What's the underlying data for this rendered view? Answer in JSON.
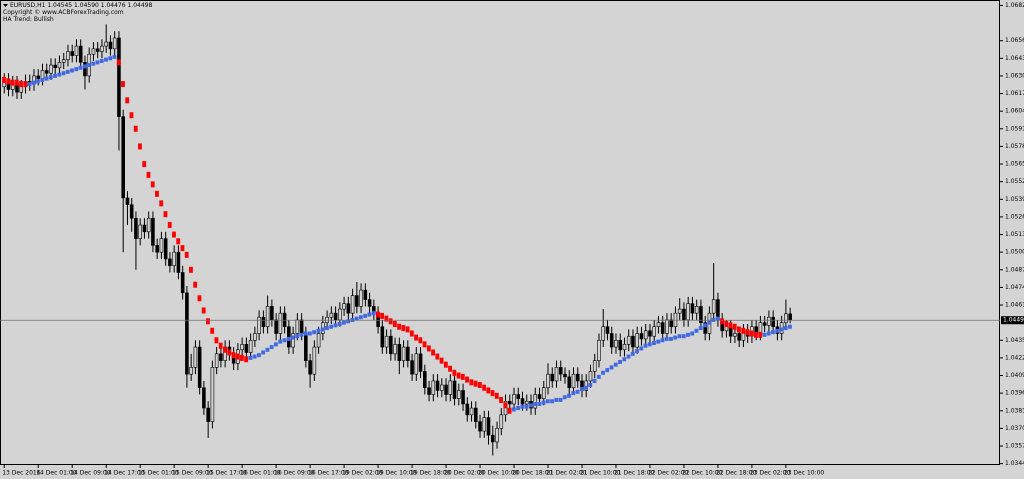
{
  "chart_data": {
    "type": "candlestick",
    "title": "EURUSD,H1  1.04545 1.04590 1.04476 1.04498",
    "subtitle": "Copyright © www.ACBForexTrading.com",
    "annotation": "HA Trend: Bullish",
    "background": "#d4d4d4",
    "candle_color": "#000000",
    "up_candle_fill": "#d4d4d4",
    "down_candle_fill": "#000000",
    "ha_up_color": "#4169e1",
    "ha_down_color": "#ff0000",
    "price_line_color": "#6e6e6e",
    "xlim": [
      -1,
      234.4
    ],
    "xticks": [
      {
        "value": 0,
        "label": "13 Dec 2016"
      },
      {
        "value": 8,
        "label": "14 Dec 01:00"
      },
      {
        "value": 16,
        "label": "14 Dec 09:00"
      },
      {
        "value": 24,
        "label": "14 Dec 17:00"
      },
      {
        "value": 32,
        "label": "15 Dec 01:00"
      },
      {
        "value": 40,
        "label": "15 Dec 09:00"
      },
      {
        "value": 48,
        "label": "15 Dec 17:00"
      },
      {
        "value": 56,
        "label": "16 Dec 01:00"
      },
      {
        "value": 64,
        "label": "16 Dec 09:00"
      },
      {
        "value": 72,
        "label": "16 Dec 17:00"
      },
      {
        "value": 80,
        "label": "19 Dec 02:00"
      },
      {
        "value": 88,
        "label": "19 Dec 10:00"
      },
      {
        "value": 96,
        "label": "19 Dec 18:00"
      },
      {
        "value": 104,
        "label": "20 Dec 02:00"
      },
      {
        "value": 112,
        "label": "20 Dec 10:00"
      },
      {
        "value": 120,
        "label": "20 Dec 18:00"
      },
      {
        "value": 128,
        "label": "21 Dec 02:00"
      },
      {
        "value": 136,
        "label": "21 Dec 10:00"
      },
      {
        "value": 144,
        "label": "21 Dec 18:00"
      },
      {
        "value": 152,
        "label": "22 Dec 02:00"
      },
      {
        "value": 160,
        "label": "22 Dec 10:00"
      },
      {
        "value": 168,
        "label": "22 Dec 18:00"
      },
      {
        "value": 176,
        "label": "23 Dec 02:00"
      },
      {
        "value": 184,
        "label": "23 Dec 10:00"
      }
    ],
    "ylim": [
      1.0343,
      1.0686
    ],
    "yticks": [
      {
        "value": 1.0682,
        "label": "1.06820"
      },
      {
        "value": 1.0656,
        "label": "1.06560"
      },
      {
        "value": 1.0643,
        "label": "1.06430"
      },
      {
        "value": 1.063,
        "label": "1.06300"
      },
      {
        "value": 1.0617,
        "label": "1.06170"
      },
      {
        "value": 1.0604,
        "label": "1.06040"
      },
      {
        "value": 1.0591,
        "label": "1.05910"
      },
      {
        "value": 1.0578,
        "label": "1.05780"
      },
      {
        "value": 1.0565,
        "label": "1.05650"
      },
      {
        "value": 1.0552,
        "label": "1.05520"
      },
      {
        "value": 1.0539,
        "label": "1.05390"
      },
      {
        "value": 1.0526,
        "label": "1.05260"
      },
      {
        "value": 1.0513,
        "label": "1.05130"
      },
      {
        "value": 1.05,
        "label": "1.05000"
      },
      {
        "value": 1.0487,
        "label": "1.04870"
      },
      {
        "value": 1.0474,
        "label": "1.04740"
      },
      {
        "value": 1.0461,
        "label": "1.04610"
      },
      {
        "value": 1.0435,
        "label": "1.04350"
      },
      {
        "value": 1.0422,
        "label": "1.04220"
      },
      {
        "value": 1.0409,
        "label": "1.04090"
      },
      {
        "value": 1.0396,
        "label": "1.03960"
      },
      {
        "value": 1.0383,
        "label": "1.03830"
      },
      {
        "value": 1.037,
        "label": "1.03700"
      },
      {
        "value": 1.0357,
        "label": "1.03570"
      },
      {
        "value": 1.0344,
        "label": "1.03440"
      }
    ],
    "current_price": {
      "value": 1.04498,
      "label": "1.04498"
    },
    "open": [
      1.0622,
      1.0627,
      1.062,
      1.0625,
      1.0618,
      1.0622,
      1.0626,
      1.0624,
      1.063,
      1.0628,
      1.0634,
      1.0632,
      1.0638,
      1.0636,
      1.064,
      1.0642,
      1.0648,
      1.0645,
      1.0652,
      1.064,
      1.063,
      1.0646,
      1.065,
      1.0648,
      1.0652,
      1.0655,
      1.065,
      1.0658,
      1.06,
      1.054,
      1.0535,
      1.0525,
      1.051,
      1.052,
      1.0515,
      1.0525,
      1.0505,
      1.05,
      1.051,
      1.0495,
      1.049,
      1.05,
      1.0485,
      1.047,
      1.041,
      1.0415,
      1.043,
      1.04,
      1.0385,
      1.0375,
      1.0415,
      1.0425,
      1.042,
      1.043,
      1.0425,
      1.0418,
      1.0428,
      1.0432,
      1.0426,
      1.0435,
      1.044,
      1.0452,
      1.0445,
      1.046,
      1.045,
      1.044,
      1.0455,
      1.0445,
      1.043,
      1.044,
      1.045,
      1.044,
      1.042,
      1.041,
      1.043,
      1.044,
      1.0448,
      1.0452,
      1.0455,
      1.045,
      1.0458,
      1.0462,
      1.0455,
      1.0468,
      1.046,
      1.0472,
      1.0465,
      1.046,
      1.0455,
      1.0445,
      1.043,
      1.0438,
      1.0425,
      1.0432,
      1.042,
      1.043,
      1.042,
      1.041,
      1.0425,
      1.0412,
      1.04,
      1.0395,
      1.0405,
      1.0398,
      1.0402,
      1.0395,
      1.0405,
      1.0392,
      1.0398,
      1.0388,
      1.038,
      1.0385,
      1.0375,
      1.0368,
      1.0378,
      1.0365,
      1.036,
      1.037,
      1.038,
      1.039,
      1.0388,
      1.0395,
      1.0392,
      1.0388,
      1.039,
      1.0385,
      1.0395,
      1.0392,
      1.04,
      1.041,
      1.0405,
      1.0415,
      1.041,
      1.0408,
      1.04,
      1.041,
      1.0405,
      1.0398,
      1.0405,
      1.0412,
      1.042,
      1.0435,
      1.0445,
      1.044,
      1.043,
      1.0435,
      1.0428,
      1.0432,
      1.0438,
      1.043,
      1.044,
      1.0436,
      1.0442,
      1.0438,
      1.0445,
      1.0448,
      1.044,
      1.045,
      1.0445,
      1.0455,
      1.0458,
      1.045,
      1.0462,
      1.0455,
      1.046,
      1.0448,
      1.044,
      1.0455,
      1.0465,
      1.045,
      1.0442,
      1.0445,
      1.0438,
      1.044,
      1.0435,
      1.0442,
      1.0438,
      1.0445,
      1.044,
      1.0448,
      1.0446,
      1.0452,
      1.0445,
      1.044,
      1.0448,
      1.04545
    ],
    "high": [
      1.0632,
      1.0632,
      1.063,
      1.063,
      1.0627,
      1.0631,
      1.0631,
      1.0635,
      1.0635,
      1.0639,
      1.0639,
      1.0643,
      1.0643,
      1.0645,
      1.0647,
      1.0653,
      1.0653,
      1.0657,
      1.0657,
      1.0645,
      1.0651,
      1.0655,
      1.0655,
      1.0657,
      1.0668,
      1.066,
      1.0663,
      1.0663,
      1.0605,
      1.0545,
      1.054,
      1.053,
      1.0525,
      1.0525,
      1.053,
      1.053,
      1.051,
      1.0515,
      1.0515,
      1.05,
      1.0505,
      1.0505,
      1.049,
      1.0475,
      1.0425,
      1.0435,
      1.0435,
      1.0405,
      1.039,
      1.042,
      1.043,
      1.043,
      1.0435,
      1.0435,
      1.043,
      1.0433,
      1.0437,
      1.0437,
      1.044,
      1.0445,
      1.0457,
      1.0457,
      1.0468,
      1.0465,
      1.0455,
      1.046,
      1.046,
      1.045,
      1.0445,
      1.0455,
      1.0455,
      1.0445,
      1.0425,
      1.0435,
      1.0445,
      1.0453,
      1.0457,
      1.046,
      1.046,
      1.0463,
      1.0467,
      1.0467,
      1.0473,
      1.0478,
      1.0477,
      1.0477,
      1.047,
      1.0465,
      1.046,
      1.045,
      1.0443,
      1.0443,
      1.0437,
      1.0437,
      1.0435,
      1.0435,
      1.0425,
      1.043,
      1.043,
      1.0417,
      1.0405,
      1.041,
      1.041,
      1.0407,
      1.0407,
      1.041,
      1.041,
      1.0403,
      1.0403,
      1.0393,
      1.039,
      1.039,
      1.038,
      1.0383,
      1.0383,
      1.0372,
      1.0375,
      1.0385,
      1.0395,
      1.0395,
      1.04,
      1.04,
      1.0397,
      1.0395,
      1.0395,
      1.04,
      1.04,
      1.0405,
      1.0418,
      1.0415,
      1.042,
      1.042,
      1.0415,
      1.0413,
      1.0415,
      1.0415,
      1.041,
      1.041,
      1.0417,
      1.0425,
      1.044,
      1.0458,
      1.045,
      1.0445,
      1.044,
      1.044,
      1.0437,
      1.0443,
      1.0443,
      1.0445,
      1.0445,
      1.0447,
      1.0447,
      1.045,
      1.0453,
      1.0453,
      1.0455,
      1.0455,
      1.046,
      1.0466,
      1.0463,
      1.0467,
      1.0467,
      1.0465,
      1.0465,
      1.0453,
      1.046,
      1.0492,
      1.047,
      1.0455,
      1.045,
      1.045,
      1.0445,
      1.0445,
      1.0447,
      1.0447,
      1.045,
      1.045,
      1.0453,
      1.0453,
      1.0457,
      1.0457,
      1.045,
      1.0453,
      1.0465,
      1.0459
    ],
    "low": [
      1.0617,
      1.0615,
      1.0615,
      1.0613,
      1.0613,
      1.0617,
      1.0619,
      1.0619,
      1.0623,
      1.0623,
      1.0627,
      1.0627,
      1.0631,
      1.0631,
      1.0635,
      1.0637,
      1.064,
      1.064,
      1.0635,
      1.062,
      1.0625,
      1.0641,
      1.0643,
      1.0643,
      1.0647,
      1.0645,
      1.0645,
      1.0575,
      1.05,
      1.052,
      1.0515,
      1.0487,
      1.0505,
      1.051,
      1.051,
      1.05,
      1.0495,
      1.0495,
      1.049,
      1.0485,
      1.0485,
      1.048,
      1.0465,
      1.04,
      1.0405,
      1.041,
      1.0395,
      1.038,
      1.0363,
      1.037,
      1.041,
      1.0415,
      1.0415,
      1.042,
      1.0413,
      1.0413,
      1.0423,
      1.0421,
      1.0421,
      1.043,
      1.0435,
      1.044,
      1.044,
      1.0445,
      1.0435,
      1.0435,
      1.044,
      1.0425,
      1.0425,
      1.0435,
      1.0435,
      1.0415,
      1.04,
      1.0405,
      1.0425,
      1.0435,
      1.0443,
      1.0447,
      1.0445,
      1.0445,
      1.0453,
      1.045,
      1.045,
      1.0455,
      1.0455,
      1.046,
      1.0455,
      1.045,
      1.044,
      1.0425,
      1.0425,
      1.042,
      1.042,
      1.041,
      1.0415,
      1.0415,
      1.0405,
      1.0405,
      1.0407,
      1.0395,
      1.039,
      1.039,
      1.0393,
      1.0393,
      1.039,
      1.039,
      1.0387,
      1.0387,
      1.0383,
      1.0375,
      1.0375,
      1.037,
      1.0363,
      1.0363,
      1.0358,
      1.035,
      1.0355,
      1.0365,
      1.0375,
      1.0383,
      1.0383,
      1.0387,
      1.0383,
      1.0383,
      1.038,
      1.038,
      1.0387,
      1.0387,
      1.0395,
      1.04,
      1.04,
      1.0405,
      1.0403,
      1.0395,
      1.0395,
      1.04,
      1.0393,
      1.0393,
      1.04,
      1.0407,
      1.0415,
      1.043,
      1.0435,
      1.0425,
      1.0425,
      1.0423,
      1.0423,
      1.0427,
      1.0425,
      1.0425,
      1.0431,
      1.0431,
      1.0433,
      1.0433,
      1.044,
      1.0435,
      1.0435,
      1.044,
      1.044,
      1.045,
      1.0445,
      1.0445,
      1.045,
      1.045,
      1.0443,
      1.0435,
      1.0435,
      1.045,
      1.0445,
      1.0437,
      1.0437,
      1.0433,
      1.0433,
      1.043,
      1.043,
      1.0433,
      1.0433,
      1.0435,
      1.0435,
      1.0441,
      1.0441,
      1.044,
      1.0435,
      1.0435,
      1.0443,
      1.04476
    ],
    "close": [
      1.0627,
      1.062,
      1.0625,
      1.0618,
      1.0622,
      1.0626,
      1.0624,
      1.063,
      1.0628,
      1.0634,
      1.0632,
      1.0638,
      1.0636,
      1.064,
      1.0642,
      1.0648,
      1.0645,
      1.0652,
      1.064,
      1.063,
      1.0646,
      1.065,
      1.0648,
      1.0652,
      1.0655,
      1.065,
      1.0658,
      1.06,
      1.054,
      1.0535,
      1.0525,
      1.051,
      1.052,
      1.0515,
      1.0525,
      1.0505,
      1.05,
      1.051,
      1.0495,
      1.049,
      1.05,
      1.0485,
      1.047,
      1.041,
      1.0415,
      1.043,
      1.04,
      1.0385,
      1.0375,
      1.0415,
      1.0425,
      1.042,
      1.043,
      1.0425,
      1.0418,
      1.0428,
      1.0432,
      1.0426,
      1.0435,
      1.044,
      1.0452,
      1.0445,
      1.046,
      1.045,
      1.044,
      1.0455,
      1.0445,
      1.043,
      1.044,
      1.045,
      1.044,
      1.042,
      1.041,
      1.043,
      1.044,
      1.0448,
      1.0452,
      1.0455,
      1.045,
      1.0458,
      1.0462,
      1.0455,
      1.0468,
      1.046,
      1.0472,
      1.0465,
      1.046,
      1.0455,
      1.0445,
      1.043,
      1.0438,
      1.0425,
      1.0432,
      1.042,
      1.043,
      1.042,
      1.041,
      1.0425,
      1.0412,
      1.04,
      1.0395,
      1.0405,
      1.0398,
      1.0402,
      1.0395,
      1.0405,
      1.0392,
      1.0398,
      1.0388,
      1.038,
      1.0385,
      1.0375,
      1.0368,
      1.0378,
      1.0365,
      1.036,
      1.037,
      1.038,
      1.039,
      1.0388,
      1.0395,
      1.0392,
      1.0388,
      1.039,
      1.0385,
      1.0395,
      1.0392,
      1.04,
      1.041,
      1.0405,
      1.0415,
      1.041,
      1.0408,
      1.04,
      1.041,
      1.0405,
      1.0398,
      1.0405,
      1.0412,
      1.042,
      1.0435,
      1.0445,
      1.044,
      1.043,
      1.0435,
      1.0428,
      1.0432,
      1.0438,
      1.043,
      1.044,
      1.0436,
      1.0442,
      1.0438,
      1.0445,
      1.0448,
      1.044,
      1.045,
      1.0445,
      1.0455,
      1.0458,
      1.045,
      1.0462,
      1.0455,
      1.046,
      1.0448,
      1.044,
      1.0455,
      1.0465,
      1.045,
      1.0442,
      1.0445,
      1.0438,
      1.044,
      1.0435,
      1.0442,
      1.0438,
      1.0445,
      1.044,
      1.0448,
      1.0446,
      1.0452,
      1.0445,
      1.044,
      1.0448,
      1.04545,
      1.04498
    ],
    "ha_trend": [
      1.0627,
      1.0626,
      1.0625,
      1.0625,
      1.0624,
      1.0624,
      1.0624,
      1.0625,
      1.0626,
      1.0627,
      1.0628,
      1.0629,
      1.063,
      1.0631,
      1.0632,
      1.0633,
      1.0634,
      1.0635,
      1.0636,
      1.0637,
      1.0638,
      1.0639,
      1.064,
      1.0641,
      1.0642,
      1.0643,
      1.0644,
      1.064,
      1.0624,
      1.0612,
      1.0601,
      1.0591,
      1.0578,
      1.0565,
      1.0557,
      1.055,
      1.0543,
      1.0536,
      1.0528,
      1.052,
      1.0513,
      1.0508,
      1.0503,
      1.0498,
      1.0487,
      1.0476,
      1.0466,
      1.0457,
      1.0449,
      1.0442,
      1.0435,
      1.0431,
      1.0428,
      1.0426,
      1.0424,
      1.0423,
      1.0422,
      1.0421,
      1.0422,
      1.0423,
      1.0424,
      1.0426,
      1.0428,
      1.043,
      1.0432,
      1.0434,
      1.0435,
      1.0436,
      1.0437,
      1.0438,
      1.0439,
      1.044,
      1.044,
      1.0441,
      1.0442,
      1.0443,
      1.0444,
      1.0445,
      1.0446,
      1.0447,
      1.0448,
      1.0449,
      1.045,
      1.0451,
      1.0452,
      1.0453,
      1.0454,
      1.0455,
      1.0454,
      1.0453,
      1.0451,
      1.0449,
      1.0447,
      1.0445,
      1.0444,
      1.0443,
      1.044,
      1.0437,
      1.0435,
      1.0432,
      1.0429,
      1.0426,
      1.0423,
      1.042,
      1.0417,
      1.0414,
      1.0411,
      1.0409,
      1.0408,
      1.0406,
      1.0404,
      1.0403,
      1.0402,
      1.04,
      1.0398,
      1.0396,
      1.0394,
      1.0391,
      1.0387,
      1.0383,
      1.0384,
      1.0385,
      1.0386,
      1.0386,
      1.0387,
      1.0388,
      1.0388,
      1.0389,
      1.039,
      1.039,
      1.0391,
      1.0391,
      1.0393,
      1.0394,
      1.0396,
      1.0397,
      1.0399,
      1.04,
      1.0402,
      1.0405,
      1.0408,
      1.0411,
      1.0413,
      1.0415,
      1.0417,
      1.0419,
      1.0421,
      1.0423,
      1.0425,
      1.0427,
      1.0429,
      1.0431,
      1.0432,
      1.0433,
      1.0434,
      1.0435,
      1.0436,
      1.0436,
      1.0437,
      1.0438,
      1.0438,
      1.0439,
      1.044,
      1.0442,
      1.0444,
      1.0446,
      1.0448,
      1.045,
      1.0451,
      1.0449,
      1.0447,
      1.0446,
      1.0445,
      1.0443,
      1.0442,
      1.0441,
      1.044,
      1.0439,
      1.0439,
      1.0439,
      1.044,
      1.0441,
      1.0442,
      1.0443,
      1.0444,
      1.0445
    ],
    "ha_bullish": [
      false,
      false,
      false,
      false,
      false,
      false,
      true,
      true,
      true,
      true,
      true,
      true,
      true,
      true,
      true,
      true,
      true,
      true,
      true,
      true,
      true,
      true,
      true,
      true,
      true,
      true,
      true,
      false,
      false,
      false,
      false,
      false,
      false,
      false,
      false,
      false,
      false,
      false,
      false,
      false,
      false,
      false,
      false,
      false,
      false,
      false,
      false,
      false,
      false,
      false,
      false,
      false,
      false,
      false,
      false,
      false,
      false,
      false,
      true,
      true,
      true,
      true,
      true,
      true,
      true,
      true,
      true,
      true,
      true,
      true,
      true,
      true,
      true,
      true,
      true,
      true,
      true,
      true,
      true,
      true,
      true,
      true,
      true,
      true,
      true,
      true,
      true,
      true,
      false,
      false,
      false,
      false,
      false,
      false,
      false,
      false,
      false,
      false,
      false,
      false,
      false,
      false,
      false,
      false,
      false,
      false,
      false,
      false,
      false,
      false,
      false,
      false,
      false,
      false,
      false,
      false,
      false,
      false,
      false,
      false,
      true,
      true,
      true,
      true,
      true,
      true,
      true,
      true,
      true,
      true,
      true,
      true,
      true,
      true,
      true,
      true,
      true,
      true,
      true,
      true,
      true,
      true,
      true,
      true,
      true,
      true,
      true,
      true,
      true,
      true,
      true,
      true,
      true,
      true,
      true,
      true,
      true,
      true,
      true,
      true,
      true,
      true,
      true,
      true,
      true,
      true,
      true,
      true,
      true,
      false,
      false,
      false,
      false,
      false,
      false,
      false,
      false,
      false,
      false,
      true,
      true,
      true,
      true,
      true,
      true,
      true
    ]
  }
}
